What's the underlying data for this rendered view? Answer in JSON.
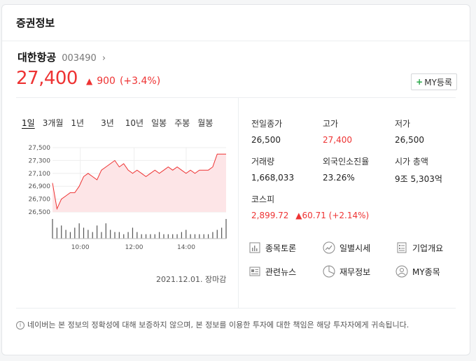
{
  "header": {
    "title": "증권정보"
  },
  "stock": {
    "name": "대한항공",
    "code": "003490",
    "chevron": "›",
    "price": "27,400",
    "change_arrow": "▲",
    "change": "900",
    "change_pct": "(+3.4%)",
    "my_button_plus": "+",
    "my_button_label": "MY등록"
  },
  "periods": [
    "1일",
    "3개월",
    "1년",
    "3년",
    "10년",
    "일봉",
    "주봉",
    "월봉"
  ],
  "datetime": "2021.12.01. 장마감",
  "chart_data": {
    "type": "area",
    "y_ticks": [
      "27,500",
      "27,300",
      "27,100",
      "26,900",
      "26,700",
      "26,500"
    ],
    "x_ticks": [
      "10:00",
      "12:00",
      "14:00"
    ],
    "ylim": [
      26500,
      27500
    ],
    "x": [
      "09:00",
      "09:10",
      "09:20",
      "09:30",
      "09:40",
      "09:50",
      "10:00",
      "10:10",
      "10:20",
      "10:30",
      "10:40",
      "10:50",
      "11:00",
      "11:10",
      "11:20",
      "11:30",
      "11:40",
      "11:50",
      "12:00",
      "12:10",
      "12:20",
      "12:30",
      "12:40",
      "12:50",
      "13:00",
      "13:10",
      "13:20",
      "13:30",
      "13:40",
      "13:50",
      "14:00",
      "14:10",
      "14:20",
      "14:30",
      "14:40",
      "14:50",
      "15:00",
      "15:10",
      "15:20",
      "15:30"
    ],
    "values": [
      26950,
      26550,
      26700,
      26750,
      26800,
      26800,
      26900,
      27050,
      27100,
      27050,
      27000,
      27150,
      27200,
      27250,
      27300,
      27200,
      27250,
      27150,
      27100,
      27150,
      27100,
      27050,
      27100,
      27150,
      27100,
      27150,
      27200,
      27150,
      27200,
      27150,
      27100,
      27150,
      27100,
      27150,
      27150,
      27150,
      27200,
      27400,
      27400,
      27400
    ],
    "volume": [
      9,
      5,
      6,
      4,
      3,
      5,
      7,
      5,
      4,
      3,
      6,
      3,
      7,
      4,
      3,
      3,
      2,
      3,
      5,
      3,
      2,
      2,
      2,
      2,
      3,
      2,
      2,
      2,
      2,
      3,
      4,
      2,
      2,
      2,
      2,
      2,
      3,
      4,
      5,
      9
    ]
  },
  "stats": [
    {
      "label": "전일종가",
      "value": "26,500",
      "red": false
    },
    {
      "label": "고가",
      "value": "27,400",
      "red": true
    },
    {
      "label": "저가",
      "value": "26,500",
      "red": false
    },
    {
      "label": "거래량",
      "value": "1,668,033",
      "red": false
    },
    {
      "label": "외국인소진율",
      "value": "23.26%",
      "red": false
    },
    {
      "label": "시가 총액",
      "value": "9조 5,303억",
      "red": false
    }
  ],
  "kospi": {
    "label": "코스피",
    "value": "2,899.72",
    "arrow": "▲",
    "change": "60.71 (+2.14%)"
  },
  "links": [
    {
      "label": "종목토론",
      "icon": "chart-bars-icon"
    },
    {
      "label": "일별시세",
      "icon": "trend-circle-icon"
    },
    {
      "label": "기업개요",
      "icon": "document-list-icon"
    },
    {
      "label": "관련뉴스",
      "icon": "newspaper-icon"
    },
    {
      "label": "재무정보",
      "icon": "pie-chart-icon"
    },
    {
      "label": "MY종목",
      "icon": "user-circle-icon"
    }
  ],
  "notice": {
    "icon": "i",
    "text": "네이버는 본 정보의 정확성에 대해 보증하지 않으며, 본 정보를 이용한 투자에 대한 책임은 해당 투자자에게 귀속됩니다."
  },
  "colors": {
    "up": "#e33333",
    "area_fill": "#fde5e7",
    "text": "#222222",
    "border": "#e3e5e8"
  }
}
